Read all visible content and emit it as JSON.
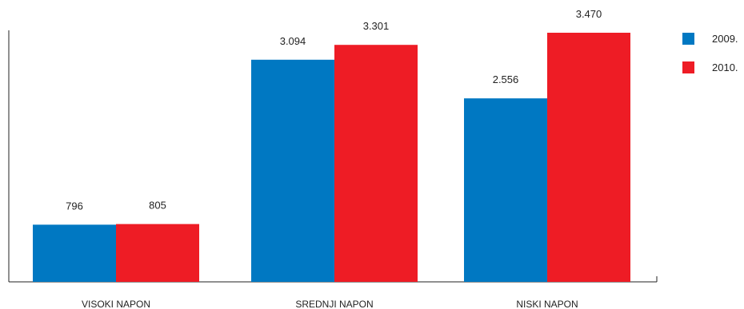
{
  "chart_data": {
    "type": "bar",
    "categories": [
      "VISOKI NAPON",
      "SREDNJI NAPON",
      "NISKI NAPON"
    ],
    "series": [
      {
        "name": "2009.",
        "values": [
          796,
          3094,
          2556
        ],
        "labels": [
          "796",
          "3.094",
          "2.556"
        ],
        "color": "#0078C2"
      },
      {
        "name": "2010.",
        "values": [
          805,
          3301,
          3470
        ],
        "labels": [
          "805",
          "3.301",
          "3.470"
        ],
        "color": "#EE1C25"
      }
    ],
    "ylim": [
      0,
      3470
    ],
    "grid": false,
    "legend": "top-right"
  }
}
